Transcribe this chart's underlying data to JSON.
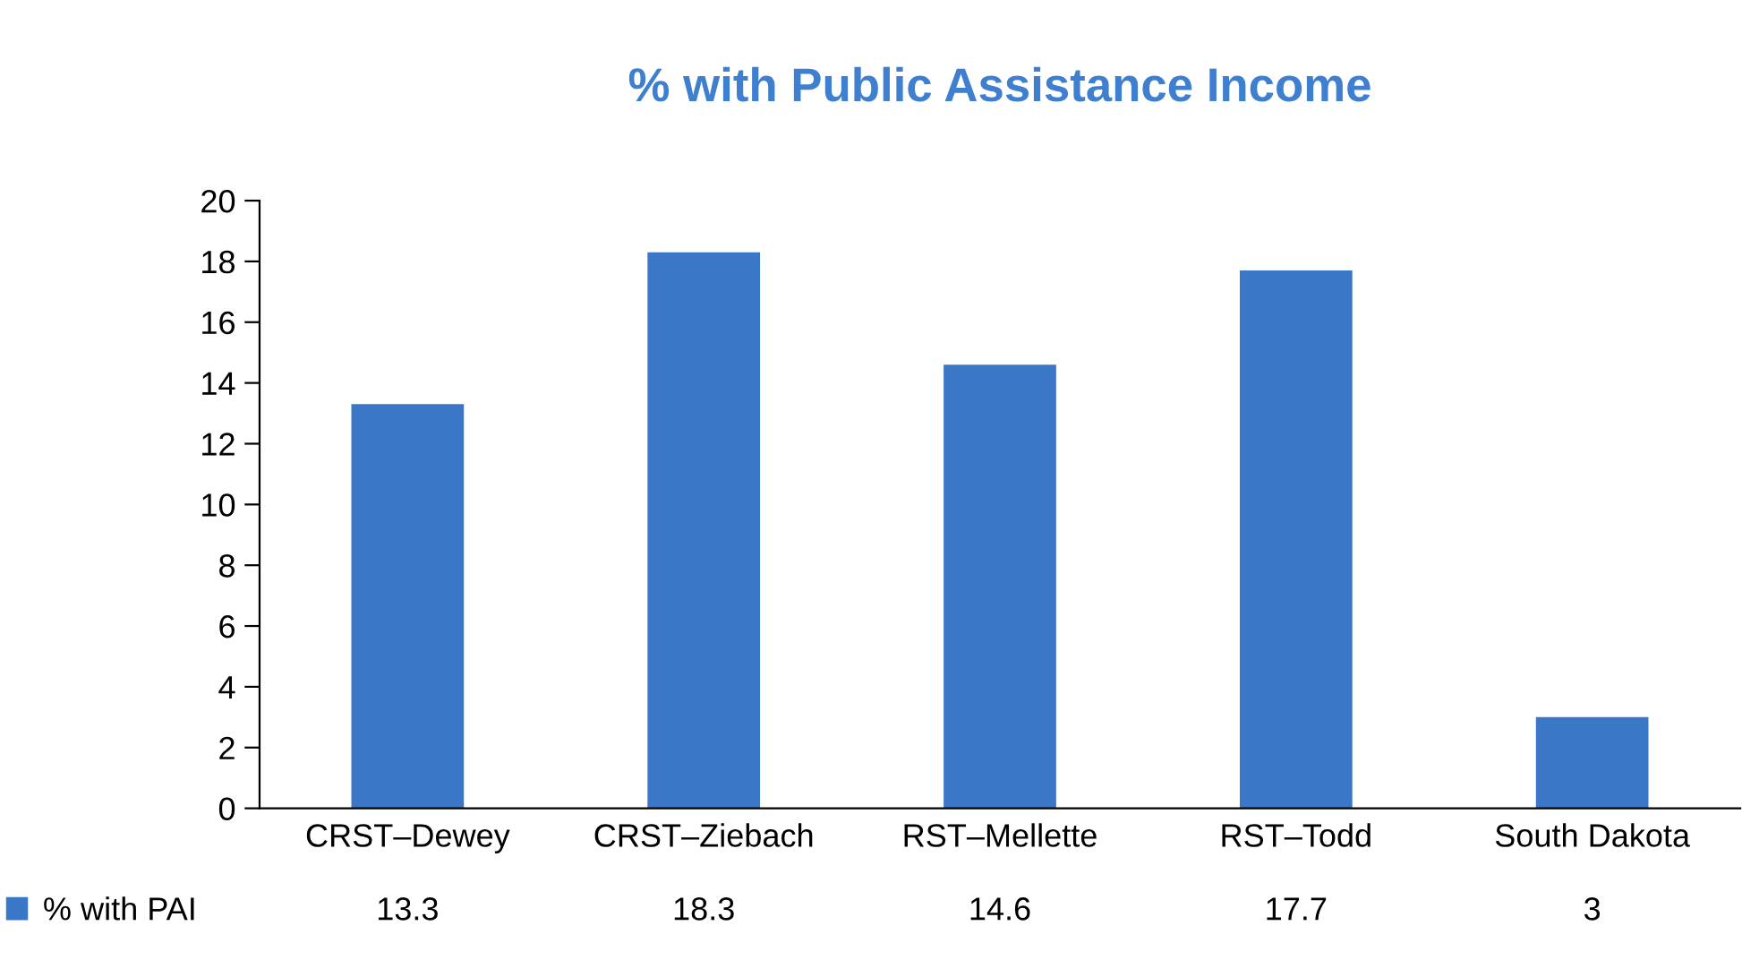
{
  "chart_data": {
    "type": "bar",
    "title": "% with Public Assistance Income",
    "categories": [
      "CRST–Dewey",
      "CRST–Ziebach",
      "RST–Mellette",
      "RST–Todd",
      "South Dakota"
    ],
    "series": [
      {
        "name": "% with PAI",
        "color": "#3b77c7",
        "values": [
          13.3,
          18.3,
          14.6,
          17.7,
          3
        ]
      }
    ],
    "ylim": [
      0,
      20
    ],
    "yticks": [
      0,
      2,
      4,
      6,
      8,
      10,
      12,
      14,
      16,
      18,
      20
    ],
    "grid": false,
    "legend": "bottom left",
    "data_labels": true
  }
}
